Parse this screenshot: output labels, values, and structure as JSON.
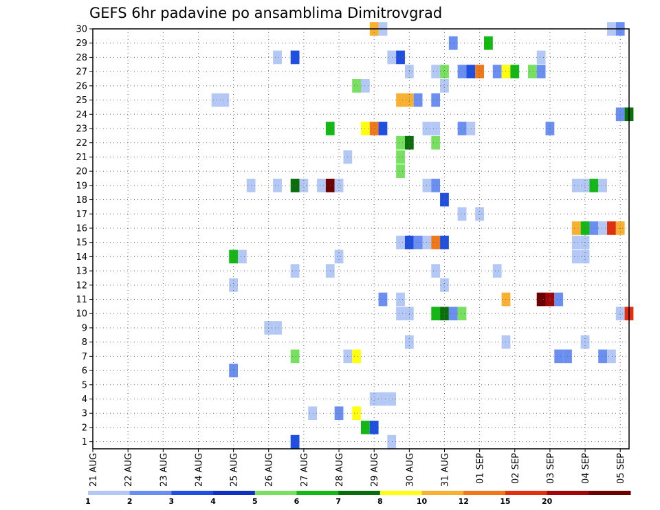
{
  "chart_data": {
    "type": "heatmap",
    "title": "GEFS 6hr padavine po ansamblima Dimitrovgrad",
    "xlabel": "",
    "ylabel": "",
    "x_ticks": [
      "21 AUG",
      "22 AUG",
      "23 AUG",
      "24 AUG",
      "25 AUG",
      "26 AUG",
      "27 AUG",
      "28 AUG",
      "29 AUG",
      "30 AUG",
      "31 AUG",
      "01 SEP",
      "02 SEP",
      "03 SEP",
      "04 SEP",
      "05 SEP"
    ],
    "y_ticks": [
      "1",
      "2",
      "3",
      "4",
      "5",
      "6",
      "7",
      "8",
      "9",
      "10",
      "11",
      "12",
      "13",
      "14",
      "15",
      "16",
      "17",
      "18",
      "19",
      "20",
      "21",
      "22",
      "23",
      "24",
      "25",
      "26",
      "27",
      "28",
      "29",
      "30"
    ],
    "xlim": [
      0,
      61
    ],
    "ylim": [
      0.5,
      30
    ],
    "grid": true,
    "x_unit": "6-hour steps from 21 AUG 00Z",
    "legend": {
      "labels": [
        "1",
        "2",
        "3",
        "4",
        "5",
        "6",
        "7",
        "8",
        "10",
        "12",
        "15",
        "20"
      ],
      "colors": [
        "#b4c8f5",
        "#6a8ff0",
        "#1f4fe0",
        "#1030c0",
        "#78e060",
        "#14b814",
        "#0a6e0a",
        "#ffff10",
        "#f8b030",
        "#f07818",
        "#e03010",
        "#a00808",
        "#6a0000"
      ]
    },
    "cells": [
      {
        "x": 34,
        "y": 1,
        "v": 1
      },
      {
        "x": 23,
        "y": 1,
        "v": 3
      },
      {
        "x": 31,
        "y": 2,
        "v": 6
      },
      {
        "x": 32,
        "y": 2,
        "v": 3
      },
      {
        "x": 25,
        "y": 3,
        "v": 1
      },
      {
        "x": 28,
        "y": 3,
        "v": 2
      },
      {
        "x": 30,
        "y": 3,
        "v": 8
      },
      {
        "x": 32,
        "y": 4,
        "v": 1
      },
      {
        "x": 33,
        "y": 4,
        "v": 1
      },
      {
        "x": 34,
        "y": 4,
        "v": 1
      },
      {
        "x": 16,
        "y": 6,
        "v": 2
      },
      {
        "x": 23,
        "y": 7,
        "v": 5
      },
      {
        "x": 29,
        "y": 7,
        "v": 1
      },
      {
        "x": 30,
        "y": 7,
        "v": 8
      },
      {
        "x": 53,
        "y": 7,
        "v": 2
      },
      {
        "x": 54,
        "y": 7,
        "v": 2
      },
      {
        "x": 58,
        "y": 7,
        "v": 2
      },
      {
        "x": 59,
        "y": 7,
        "v": 1
      },
      {
        "x": 36,
        "y": 8,
        "v": 1
      },
      {
        "x": 47,
        "y": 8,
        "v": 1
      },
      {
        "x": 56,
        "y": 8,
        "v": 1
      },
      {
        "x": 20,
        "y": 9,
        "v": 1
      },
      {
        "x": 21,
        "y": 9,
        "v": 1
      },
      {
        "x": 35,
        "y": 10,
        "v": 1
      },
      {
        "x": 36,
        "y": 10,
        "v": 1
      },
      {
        "x": 39,
        "y": 10,
        "v": 6
      },
      {
        "x": 40,
        "y": 10,
        "v": 7
      },
      {
        "x": 41,
        "y": 10,
        "v": 2
      },
      {
        "x": 42,
        "y": 10,
        "v": 5
      },
      {
        "x": 60,
        "y": 10,
        "v": 1
      },
      {
        "x": 61,
        "y": 10,
        "v": 15
      },
      {
        "x": 33,
        "y": 11,
        "v": 2
      },
      {
        "x": 35,
        "y": 11,
        "v": 1
      },
      {
        "x": 47,
        "y": 11,
        "v": 10
      },
      {
        "x": 51,
        "y": 11,
        "v": 30
      },
      {
        "x": 52,
        "y": 11,
        "v": 20
      },
      {
        "x": 53,
        "y": 11,
        "v": 2
      },
      {
        "x": 16,
        "y": 12,
        "v": 1
      },
      {
        "x": 40,
        "y": 12,
        "v": 1
      },
      {
        "x": 23,
        "y": 13,
        "v": 1
      },
      {
        "x": 27,
        "y": 13,
        "v": 1
      },
      {
        "x": 39,
        "y": 13,
        "v": 1
      },
      {
        "x": 46,
        "y": 13,
        "v": 1
      },
      {
        "x": 16,
        "y": 14,
        "v": 6
      },
      {
        "x": 17,
        "y": 14,
        "v": 1
      },
      {
        "x": 28,
        "y": 14,
        "v": 1
      },
      {
        "x": 55,
        "y": 14,
        "v": 1
      },
      {
        "x": 56,
        "y": 14,
        "v": 1
      },
      {
        "x": 35,
        "y": 15,
        "v": 1
      },
      {
        "x": 36,
        "y": 15,
        "v": 3
      },
      {
        "x": 37,
        "y": 15,
        "v": 2
      },
      {
        "x": 38,
        "y": 15,
        "v": 1
      },
      {
        "x": 39,
        "y": 15,
        "v": 12
      },
      {
        "x": 40,
        "y": 15,
        "v": 3
      },
      {
        "x": 55,
        "y": 15,
        "v": 1
      },
      {
        "x": 56,
        "y": 15,
        "v": 1
      },
      {
        "x": 55,
        "y": 16,
        "v": 10
      },
      {
        "x": 56,
        "y": 16,
        "v": 6
      },
      {
        "x": 57,
        "y": 16,
        "v": 2
      },
      {
        "x": 58,
        "y": 16,
        "v": 1
      },
      {
        "x": 59,
        "y": 16,
        "v": 15
      },
      {
        "x": 60,
        "y": 16,
        "v": 10
      },
      {
        "x": 42,
        "y": 17,
        "v": 1
      },
      {
        "x": 44,
        "y": 17,
        "v": 1
      },
      {
        "x": 40,
        "y": 18,
        "v": 3
      },
      {
        "x": 18,
        "y": 19,
        "v": 1
      },
      {
        "x": 21,
        "y": 19,
        "v": 1
      },
      {
        "x": 23,
        "y": 19,
        "v": 7
      },
      {
        "x": 24,
        "y": 19,
        "v": 1
      },
      {
        "x": 26,
        "y": 19,
        "v": 1
      },
      {
        "x": 27,
        "y": 19,
        "v": 30
      },
      {
        "x": 28,
        "y": 19,
        "v": 1
      },
      {
        "x": 38,
        "y": 19,
        "v": 1
      },
      {
        "x": 39,
        "y": 19,
        "v": 2
      },
      {
        "x": 55,
        "y": 19,
        "v": 1
      },
      {
        "x": 56,
        "y": 19,
        "v": 1
      },
      {
        "x": 57,
        "y": 19,
        "v": 6
      },
      {
        "x": 58,
        "y": 19,
        "v": 1
      },
      {
        "x": 35,
        "y": 20,
        "v": 5
      },
      {
        "x": 29,
        "y": 21,
        "v": 1
      },
      {
        "x": 35,
        "y": 21,
        "v": 5
      },
      {
        "x": 35,
        "y": 22,
        "v": 5
      },
      {
        "x": 36,
        "y": 22,
        "v": 7
      },
      {
        "x": 39,
        "y": 22,
        "v": 5
      },
      {
        "x": 27,
        "y": 23,
        "v": 6
      },
      {
        "x": 31,
        "y": 23,
        "v": 8
      },
      {
        "x": 32,
        "y": 23,
        "v": 12
      },
      {
        "x": 33,
        "y": 23,
        "v": 3
      },
      {
        "x": 38,
        "y": 23,
        "v": 1
      },
      {
        "x": 39,
        "y": 23,
        "v": 1
      },
      {
        "x": 42,
        "y": 23,
        "v": 2
      },
      {
        "x": 43,
        "y": 23,
        "v": 1
      },
      {
        "x": 52,
        "y": 23,
        "v": 2
      },
      {
        "x": 60,
        "y": 24,
        "v": 2
      },
      {
        "x": 61,
        "y": 24,
        "v": 7
      },
      {
        "x": 14,
        "y": 25,
        "v": 1
      },
      {
        "x": 15,
        "y": 25,
        "v": 1
      },
      {
        "x": 35,
        "y": 25,
        "v": 10
      },
      {
        "x": 36,
        "y": 25,
        "v": 10
      },
      {
        "x": 37,
        "y": 25,
        "v": 2
      },
      {
        "x": 39,
        "y": 25,
        "v": 2
      },
      {
        "x": 30,
        "y": 26,
        "v": 5
      },
      {
        "x": 31,
        "y": 26,
        "v": 1
      },
      {
        "x": 40,
        "y": 26,
        "v": 1
      },
      {
        "x": 36,
        "y": 27,
        "v": 1
      },
      {
        "x": 39,
        "y": 27,
        "v": 1
      },
      {
        "x": 40,
        "y": 27,
        "v": 5
      },
      {
        "x": 42,
        "y": 27,
        "v": 2
      },
      {
        "x": 43,
        "y": 27,
        "v": 3
      },
      {
        "x": 44,
        "y": 27,
        "v": 12
      },
      {
        "x": 46,
        "y": 27,
        "v": 2
      },
      {
        "x": 47,
        "y": 27,
        "v": 8
      },
      {
        "x": 48,
        "y": 27,
        "v": 6
      },
      {
        "x": 50,
        "y": 27,
        "v": 5
      },
      {
        "x": 51,
        "y": 27,
        "v": 2
      },
      {
        "x": 21,
        "y": 28,
        "v": 1
      },
      {
        "x": 23,
        "y": 28,
        "v": 3
      },
      {
        "x": 34,
        "y": 28,
        "v": 1
      },
      {
        "x": 35,
        "y": 28,
        "v": 3
      },
      {
        "x": 51,
        "y": 28,
        "v": 1
      },
      {
        "x": 41,
        "y": 29,
        "v": 2
      },
      {
        "x": 45,
        "y": 29,
        "v": 6
      },
      {
        "x": 32,
        "y": 30,
        "v": 10
      },
      {
        "x": 33,
        "y": 30,
        "v": 1
      },
      {
        "x": 59,
        "y": 30,
        "v": 1
      },
      {
        "x": 60,
        "y": 30,
        "v": 2
      }
    ]
  }
}
